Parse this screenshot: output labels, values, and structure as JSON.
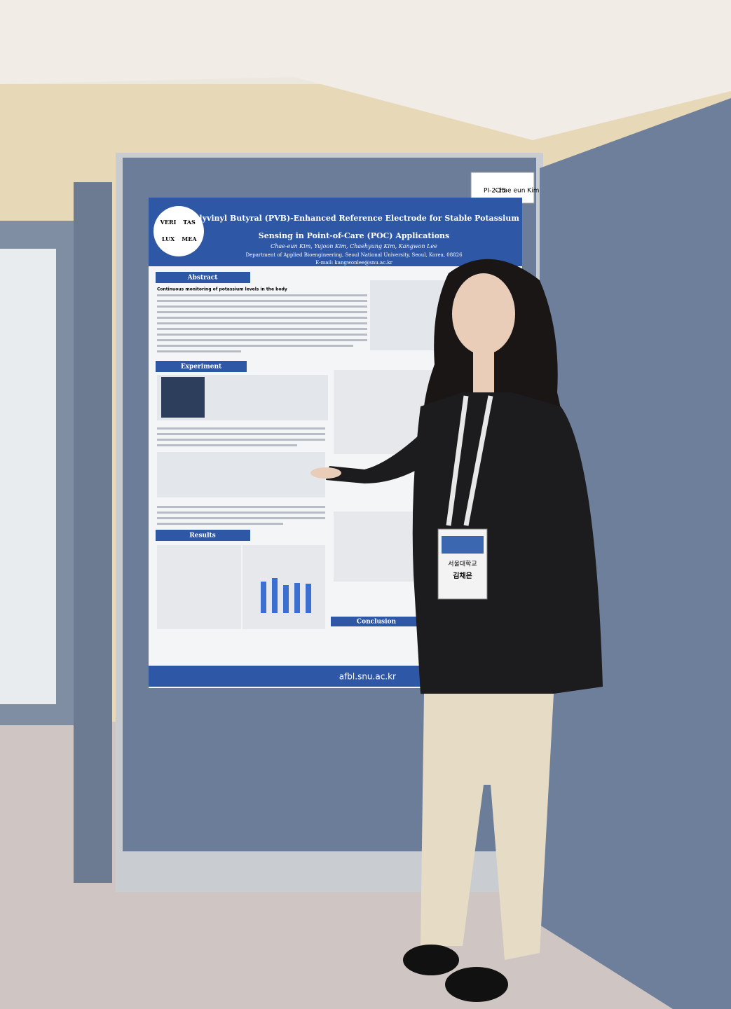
{
  "board_label": {
    "code": "PI-2-15",
    "name": "Chae eun Kim"
  },
  "poster": {
    "title_line1": "Polyvinyl Butyral (PVB)-Enhanced Reference Electrode for Stable Potassium",
    "title_line2": "Sensing in Point-of-Care (POC) Applications",
    "authors": "Chae-eun Kim, Yujoon Kim, Chaehyung Kim, Kangwon Lee",
    "affiliation": "Department of Applied Bioengineering, Seoul National University, Seoul, Korea, 08826",
    "email": "E-mail: kangwonlee@snu.ac.kr",
    "logo": [
      "VERI",
      "TAS",
      "LUX",
      "MEA"
    ],
    "abstract_lead": "Continuous monitoring of potassium levels in the body",
    "sections": [
      "Abstract",
      "Experiment",
      "Results",
      "Conclusion"
    ],
    "footer": "afbl.snu.ac.kr"
  },
  "badge": {
    "school": "서울대학교",
    "name": "김채은"
  }
}
